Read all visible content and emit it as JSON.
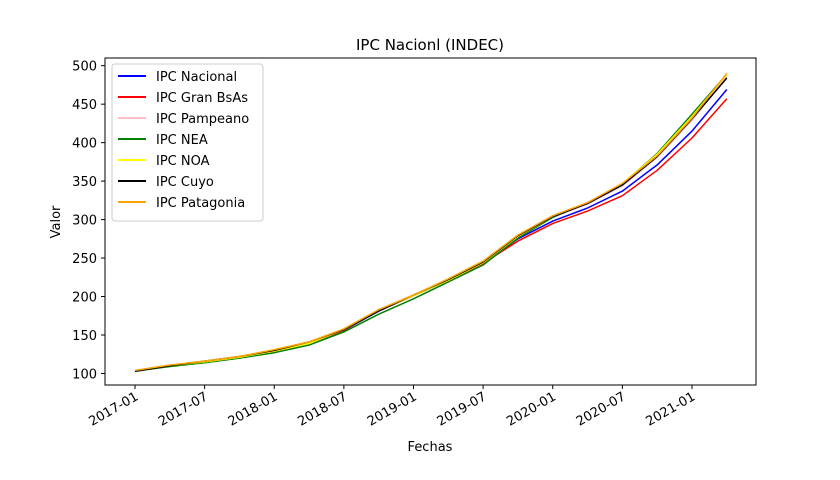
{
  "chart_data": {
    "type": "line",
    "title": "IPC Nacionl (INDEC)",
    "xlabel": "Fechas",
    "ylabel": "Valor",
    "x": [
      "2017-01",
      "2017-04",
      "2017-07",
      "2017-10",
      "2018-01",
      "2018-04",
      "2018-07",
      "2018-10",
      "2019-01",
      "2019-04",
      "2019-07",
      "2019-10",
      "2020-01",
      "2020-04",
      "2020-07",
      "2020-10",
      "2021-01",
      "2021-04"
    ],
    "x_ticks": [
      "2017-01",
      "2017-07",
      "2018-01",
      "2018-07",
      "2019-01",
      "2019-07",
      "2020-01",
      "2020-07",
      "2021-01"
    ],
    "y_ticks": [
      100,
      150,
      200,
      250,
      300,
      350,
      400,
      450,
      500
    ],
    "ylim": [
      85,
      510
    ],
    "grid": false,
    "legend_position": "top-left",
    "series": [
      {
        "name": "IPC Nacional",
        "color": "#0000ff",
        "values": [
          103,
          110,
          115,
          121,
          129,
          139,
          156,
          181,
          201,
          221,
          243,
          275,
          298,
          315,
          337,
          371,
          415,
          469
        ]
      },
      {
        "name": "IPC Gran BsAs",
        "color": "#ff0000",
        "values": [
          103,
          110,
          115,
          121,
          129,
          139,
          156,
          182,
          202,
          221,
          243,
          272,
          295,
          311,
          331,
          364,
          406,
          457
        ]
      },
      {
        "name": "IPC Pampeano",
        "color": "#ffc0cb",
        "values": [
          103,
          110,
          115,
          122,
          130,
          140,
          157,
          183,
          202,
          222,
          245,
          278,
          303,
          320,
          344,
          381,
          429,
          486
        ]
      },
      {
        "name": "IPC NEA",
        "color": "#008000",
        "values": [
          103,
          109,
          114,
          120,
          127,
          137,
          154,
          177,
          197,
          219,
          241,
          276,
          303,
          322,
          346,
          386,
          437,
          489
        ]
      },
      {
        "name": "IPC NOA",
        "color": "#ffff00",
        "values": [
          103,
          110,
          115,
          121,
          129,
          139,
          157,
          181,
          201,
          221,
          244,
          278,
          304,
          322,
          347,
          385,
          434,
          489
        ]
      },
      {
        "name": "IPC Cuyo",
        "color": "#000000",
        "values": [
          103,
          110,
          116,
          122,
          130,
          141,
          157,
          181,
          202,
          222,
          245,
          279,
          304,
          321,
          345,
          382,
          431,
          484
        ]
      },
      {
        "name": "IPC Patagonia",
        "color": "#ffa500",
        "values": [
          104,
          111,
          116,
          122,
          131,
          141,
          158,
          183,
          202,
          223,
          246,
          280,
          305,
          322,
          347,
          383,
          432,
          490
        ]
      }
    ]
  }
}
